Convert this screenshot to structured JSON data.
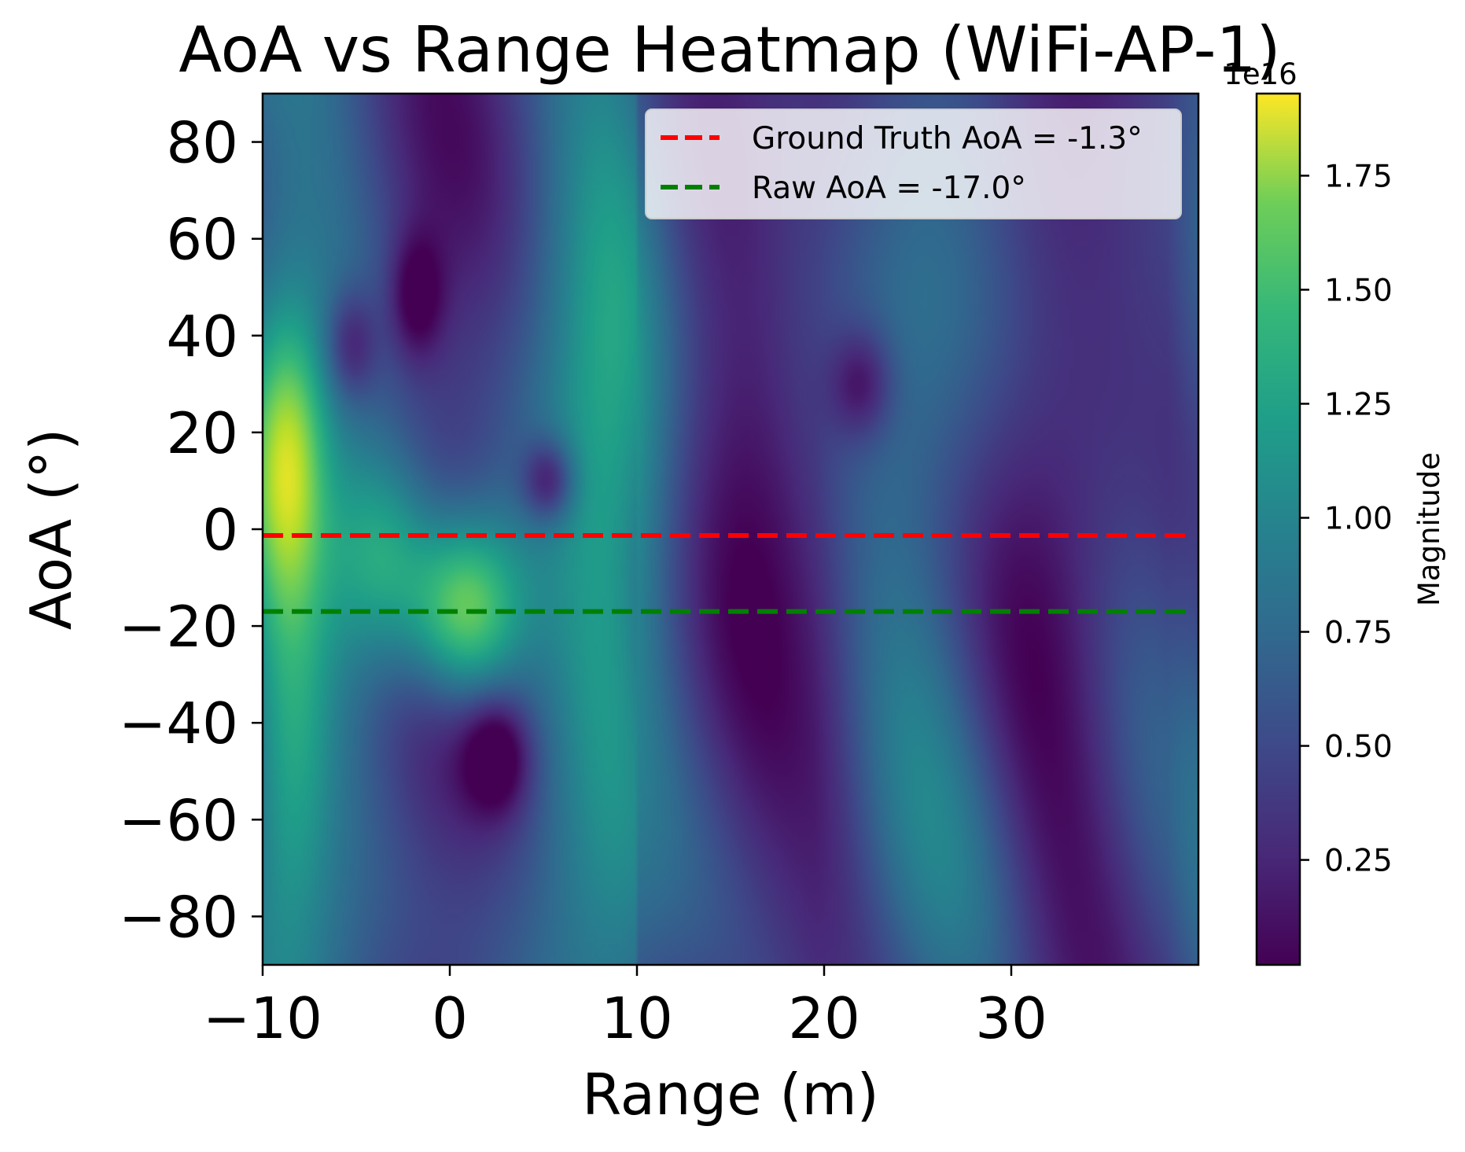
{
  "chart_data": {
    "type": "heatmap",
    "title": "AoA vs Range Heatmap (WiFi-AP-1)",
    "xlabel": "Range (m)",
    "ylabel": "AoA (°)",
    "xlim": [
      -10,
      40
    ],
    "ylim": [
      -90,
      90
    ],
    "x_ticks": [
      -10,
      0,
      10,
      20,
      30
    ],
    "x_tick_labels": [
      "−10",
      "0",
      "10",
      "20",
      "30"
    ],
    "y_ticks": [
      80,
      60,
      40,
      20,
      0,
      -20,
      -40,
      -60,
      -80
    ],
    "y_tick_labels": [
      "80",
      "60",
      "40",
      "20",
      "0",
      "−20",
      "−40",
      "−60",
      "−80"
    ],
    "colormap": "viridis",
    "colorbar": {
      "label": "Magnitude",
      "exponent_label": "1e16",
      "range": [
        0.02,
        1.93
      ],
      "ticks": [
        0.25,
        0.5,
        0.75,
        1.0,
        1.25,
        1.5,
        1.75
      ],
      "tick_labels": [
        "0.25",
        "0.50",
        "0.75",
        "1.00",
        "1.25",
        "1.50",
        "1.75"
      ]
    },
    "lines": [
      {
        "name": "Ground Truth AoA = -1.3°",
        "y": -1.3,
        "color": "#ff0000",
        "style": "dashed"
      },
      {
        "name": "Raw AoA = -17.0°",
        "y": -17.0,
        "color": "#008000",
        "style": "dashed"
      }
    ],
    "legend_position": "upper right",
    "grid": false,
    "peaks": [
      {
        "range": 0.8,
        "aoa": -17,
        "magnitude": 1.93
      },
      {
        "range": -3.5,
        "aoa": -5,
        "magnitude": 1.55
      },
      {
        "range": -8.5,
        "aoa": 14,
        "magnitude": 1.45
      }
    ]
  }
}
